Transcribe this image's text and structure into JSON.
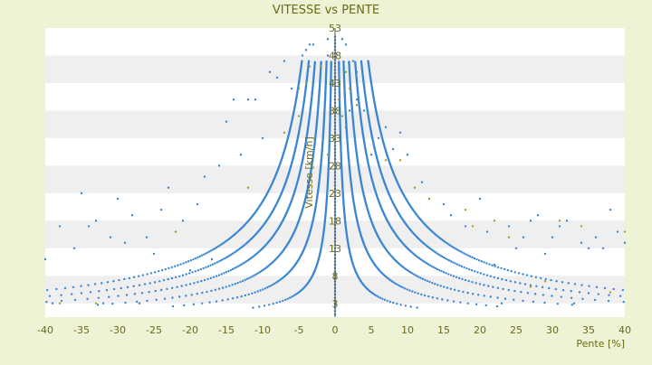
{
  "chart_data": {
    "type": "scatter",
    "title": "VITESSE vs PENTE",
    "xlabel": "Pente [%]",
    "ylabel": "Vitesse [km/h]",
    "xlim": [
      -40,
      40
    ],
    "ylim": [
      0.5,
      53
    ],
    "x_ticks": [
      -40,
      -35,
      -30,
      -25,
      -20,
      -15,
      -10,
      -5,
      0,
      5,
      10,
      15,
      20,
      25,
      30,
      35,
      40
    ],
    "y_ticks": [
      3,
      8,
      13,
      18,
      23,
      28,
      33,
      38,
      43,
      48,
      53
    ],
    "grid": "horizontal bands",
    "legend": "none",
    "colors": {
      "main_series": "#3a86d4",
      "secondary_series": "#a89b2b",
      "axis_text": "#6b6b12",
      "band": "#efefef",
      "plot_bg": "#ffffff",
      "page_bg": "#eef3d6"
    },
    "series": [
      {
        "color": "#3a86d4",
        "curve_constants": [
          25,
          55,
          90,
          130,
          170,
          215
        ],
        "upper_branch_points": [
          [
            -4.5,
            48
          ],
          [
            -4,
            49
          ],
          [
            -3.5,
            50
          ],
          [
            -3,
            50
          ],
          [
            -1,
            51
          ],
          [
            -1,
            48
          ],
          [
            1,
            51
          ],
          [
            1.5,
            50
          ],
          [
            2.5,
            47
          ],
          [
            3,
            45
          ]
        ],
        "outlier_points": [
          [
            -40,
            11
          ],
          [
            -39,
            3
          ],
          [
            -38,
            17
          ],
          [
            -36,
            13
          ],
          [
            -35,
            23
          ],
          [
            -34,
            17
          ],
          [
            -33,
            18
          ],
          [
            -32,
            3
          ],
          [
            -31,
            15
          ],
          [
            -30,
            22
          ],
          [
            -29,
            14
          ],
          [
            -28,
            19
          ],
          [
            -27,
            3
          ],
          [
            -26,
            15
          ],
          [
            -25,
            12
          ],
          [
            -24,
            20
          ],
          [
            -23,
            24
          ],
          [
            -22,
            16
          ],
          [
            -21,
            18
          ],
          [
            -20,
            9
          ],
          [
            -19,
            21
          ],
          [
            -18,
            26
          ],
          [
            -17,
            11
          ],
          [
            -16,
            28
          ],
          [
            -15,
            36
          ],
          [
            -14,
            40
          ],
          [
            -13,
            30
          ],
          [
            -12,
            40
          ],
          [
            -11,
            40
          ],
          [
            -10,
            33
          ],
          [
            -9,
            45
          ],
          [
            -8,
            44
          ],
          [
            -7,
            47
          ],
          [
            -6,
            42
          ],
          [
            1.5,
            35
          ],
          [
            2,
            38
          ],
          [
            3,
            40
          ],
          [
            4,
            38
          ],
          [
            5,
            30
          ],
          [
            6,
            33
          ],
          [
            7,
            35
          ],
          [
            8,
            31
          ],
          [
            9,
            34
          ],
          [
            10,
            30
          ],
          [
            12,
            25
          ],
          [
            13,
            22
          ],
          [
            15,
            21
          ],
          [
            16,
            19
          ],
          [
            18,
            17
          ],
          [
            20,
            22
          ],
          [
            21,
            16
          ],
          [
            22,
            10
          ],
          [
            23,
            3
          ],
          [
            24,
            17
          ],
          [
            25,
            13
          ],
          [
            26,
            15
          ],
          [
            27,
            18
          ],
          [
            28,
            19
          ],
          [
            29,
            12
          ],
          [
            30,
            15
          ],
          [
            31,
            17
          ],
          [
            32,
            18
          ],
          [
            33,
            3
          ],
          [
            34,
            14
          ],
          [
            35,
            13
          ],
          [
            36,
            15
          ],
          [
            37,
            13
          ],
          [
            38,
            20
          ],
          [
            39,
            16
          ],
          [
            40,
            14
          ]
        ]
      },
      {
        "color": "#a89b2b",
        "points": [
          [
            -38,
            3
          ],
          [
            -33,
            3
          ],
          [
            -22,
            16
          ],
          [
            -12,
            24
          ],
          [
            -7,
            34
          ],
          [
            -5,
            37
          ],
          [
            -5,
            42
          ],
          [
            -4,
            43
          ],
          [
            -3.5,
            46
          ],
          [
            -2,
            46
          ],
          [
            -1,
            30
          ],
          [
            0,
            44
          ],
          [
            0.5,
            40
          ],
          [
            1,
            37
          ],
          [
            1.5,
            45
          ],
          [
            2,
            42
          ],
          [
            3,
            39
          ],
          [
            7,
            29
          ],
          [
            9,
            29
          ],
          [
            11,
            24
          ],
          [
            13,
            22
          ],
          [
            18,
            20
          ],
          [
            19,
            17
          ],
          [
            22,
            18
          ],
          [
            24,
            15
          ],
          [
            27,
            6
          ],
          [
            29,
            7
          ],
          [
            31,
            18
          ],
          [
            34,
            17
          ],
          [
            38,
            5
          ],
          [
            40,
            16
          ]
        ]
      }
    ]
  }
}
